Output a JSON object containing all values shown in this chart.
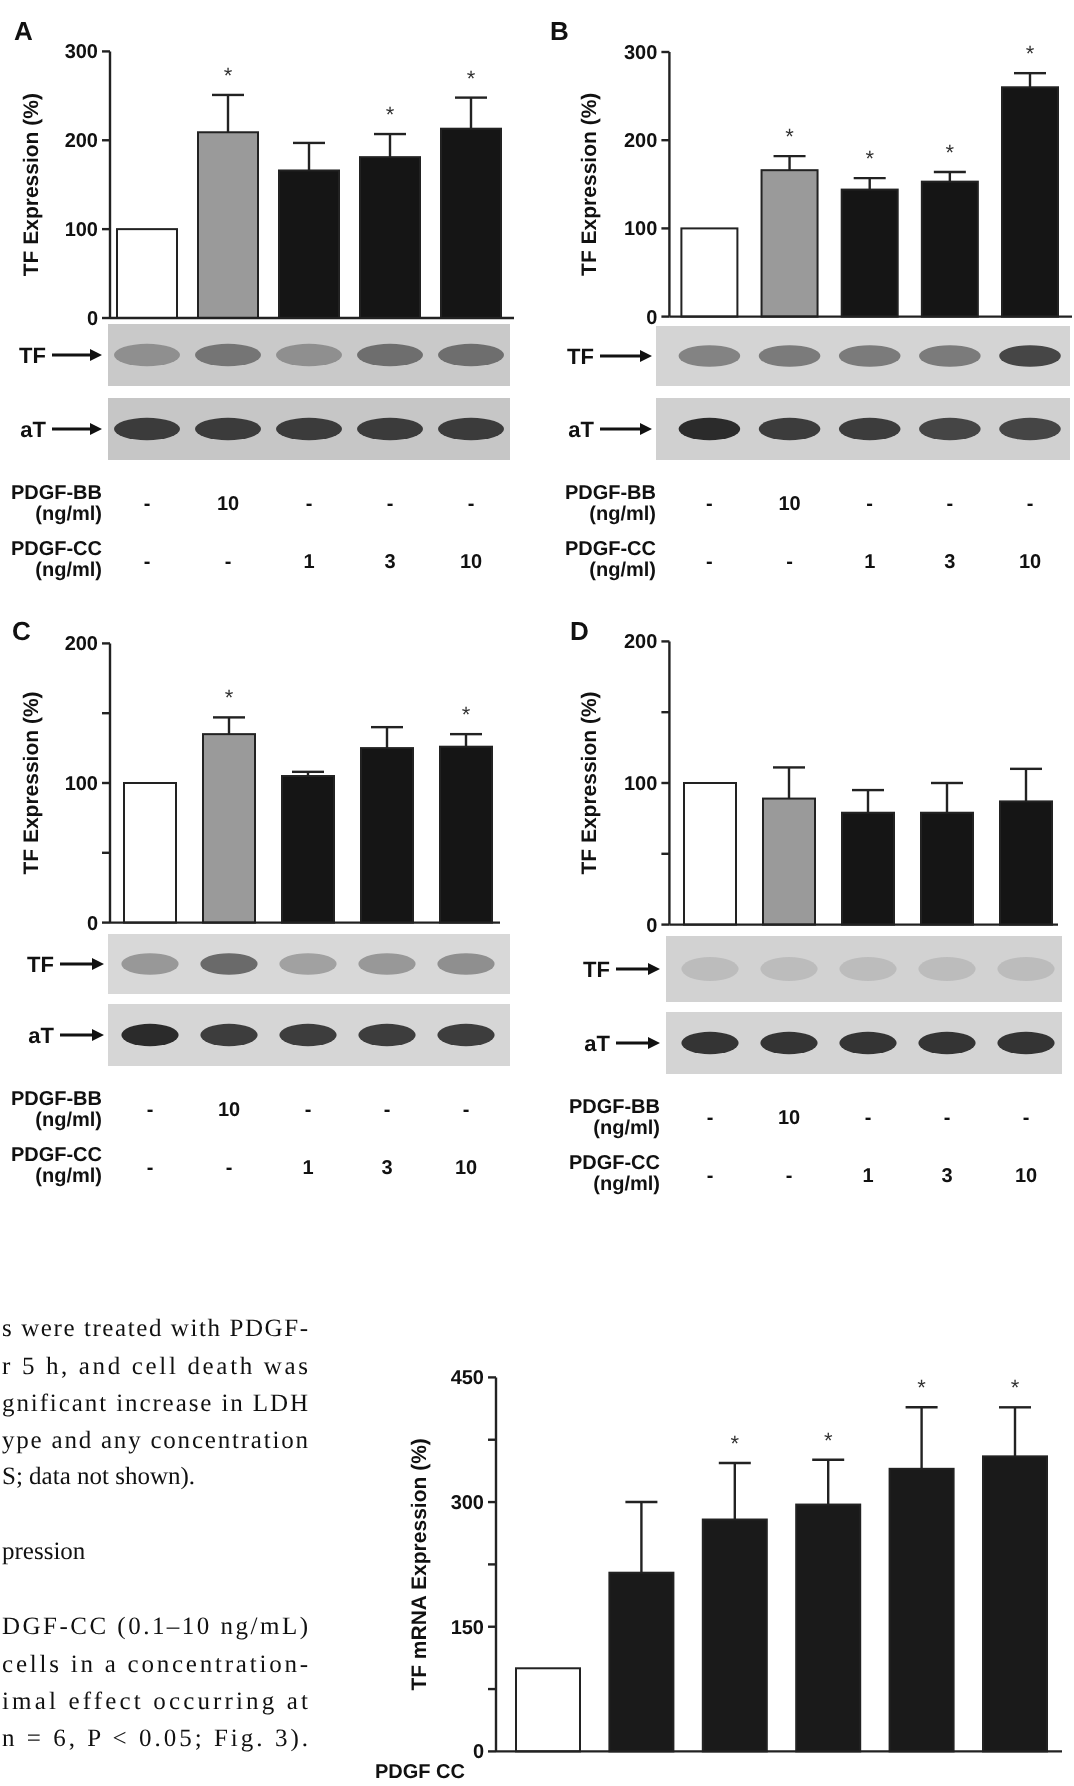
{
  "chart_data": [
    {
      "type": "bar",
      "title": "A",
      "ylabel": "TF Expression (%)",
      "categories": [
        "-\n-",
        "10\n-",
        "-\n1",
        "-\n3",
        "-\n10"
      ],
      "values": [
        100,
        209,
        166,
        181,
        213
      ],
      "colors": [
        "#ffffff",
        "#9a9a9a",
        "#151515",
        "#151515",
        "#151515"
      ],
      "errors": [
        null,
        42,
        31,
        26,
        35
      ],
      "value_labels": [
        null,
        "*",
        null,
        "*",
        "*"
      ],
      "ylim": [
        0,
        300
      ],
      "yticks": [
        0,
        100,
        200,
        300
      ],
      "annotations": [
        "TF",
        "aT",
        "PDGF-BB\n(ng/ml)",
        "PDGF-CC\n(ng/ml)"
      ]
    },
    {
      "type": "bar",
      "title": "B",
      "ylabel": "TF Expression (%)",
      "categories": [
        "-\n-",
        "10\n-",
        "-\n1",
        "-\n3",
        "-\n10"
      ],
      "values": [
        100,
        166,
        144,
        153,
        260
      ],
      "colors": [
        "#ffffff",
        "#9a9a9a",
        "#151515",
        "#151515",
        "#151515"
      ],
      "errors": [
        null,
        16,
        13,
        11,
        16
      ],
      "value_labels": [
        null,
        "*",
        "*",
        "*",
        "*"
      ],
      "ylim": [
        0,
        300
      ],
      "yticks": [
        0,
        100,
        200,
        300
      ],
      "annotations": [
        "TF",
        "aT",
        "PDGF-BB\n(ng/ml)",
        "PDGF-CC\n(ng/ml)"
      ]
    },
    {
      "type": "bar",
      "title": "C",
      "ylabel": "TF Expression (%)",
      "categories": [
        "-\n-",
        "10\n-",
        "-\n1",
        "-\n3",
        "-\n10"
      ],
      "values": [
        100,
        135,
        105,
        125,
        126
      ],
      "colors": [
        "#ffffff",
        "#9a9a9a",
        "#151515",
        "#151515",
        "#151515"
      ],
      "errors": [
        null,
        12,
        3,
        15,
        9
      ],
      "value_labels": [
        null,
        "*",
        null,
        null,
        "*"
      ],
      "ylim": [
        0,
        200
      ],
      "yticks": [
        0,
        {
          "value": 50,
          "label": null
        },
        100,
        {
          "value": 150,
          "label": null
        },
        200
      ],
      "annotations": [
        "TF",
        "aT",
        "PDGF-BB\n(ng/ml)",
        "PDGF-CC\n(ng/ml)"
      ]
    },
    {
      "type": "bar",
      "title": "D",
      "ylabel": "TF Expression (%)",
      "categories": [
        "-\n-",
        "10\n-",
        "-\n1",
        "-\n3",
        "-\n10"
      ],
      "values": [
        100,
        89,
        79,
        79,
        87
      ],
      "colors": [
        "#ffffff",
        "#9a9a9a",
        "#151515",
        "#151515",
        "#151515"
      ],
      "errors": [
        null,
        22,
        16,
        21,
        23
      ],
      "ylim": [
        0,
        200
      ],
      "yticks": [
        0,
        {
          "value": 50,
          "label": null
        },
        100,
        {
          "value": 150,
          "label": null
        },
        200
      ],
      "annotations": [
        "TF",
        "aT",
        "PDGF-BB\n(ng/ml)",
        "PDGF-CC\n(ng/ml)"
      ]
    },
    {
      "type": "bar",
      "xlabel": "PDGF CC",
      "ylabel": "TF mRNA Expression (%)",
      "categories": [
        null,
        null,
        null,
        null,
        null,
        null
      ],
      "values": [
        100,
        215,
        279,
        297,
        340,
        355
      ],
      "colors": [
        "#ffffff",
        "#1a1a1a",
        "#1a1a1a",
        "#1a1a1a",
        "#1a1a1a",
        "#1a1a1a"
      ],
      "errors": [
        null,
        85,
        68,
        54,
        74,
        59
      ],
      "value_labels": [
        null,
        null,
        "*",
        "*",
        "*",
        "*"
      ],
      "ylim": [
        0,
        450
      ],
      "yticks": [
        0,
        {
          "value": 75,
          "label": null
        },
        150,
        {
          "value": 225,
          "label": null
        },
        300,
        {
          "value": 375,
          "label": null
        },
        450
      ]
    },
    {
      "type": "other",
      "annotations": [
        "s were treated with PDGF-",
        "r 5 h, and cell death was",
        "gnificant increase in LDH",
        "ype and any concentration",
        "S; data not shown).",
        "pression",
        "DGF-CC (0.1–10 ng/mL)",
        "cells in a concentration-",
        "imal effect occurring at",
        "n = 6, P < 0.05; Fig. 3)."
      ]
    }
  ]
}
